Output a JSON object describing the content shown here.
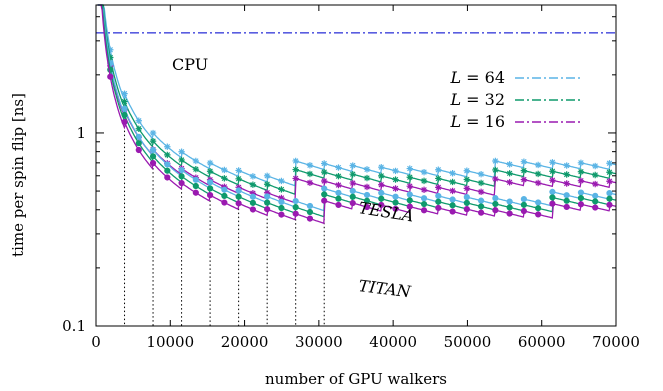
{
  "chart_data": {
    "type": "line",
    "xlabel": "number of GPU walkers",
    "ylabel": "time per spin flip [ns]",
    "xlim": [
      0,
      70000
    ],
    "ylim": [
      0.1,
      4.6
    ],
    "y_scale": "log",
    "x_ticks": [
      "0",
      "10000",
      "20000",
      "30000",
      "40000",
      "50000",
      "60000",
      "70000"
    ],
    "y_ticks": [
      "0.1",
      "1"
    ],
    "legend_position": "top-right",
    "annotations": [
      "CPU",
      "TESLA",
      "TITAN"
    ],
    "colors": {
      "L64": "#5ab4e5",
      "L32": "#0f9a6c",
      "L16": "#9a1ab0",
      "CPU": "#5a5ee0"
    },
    "cpu_level": 3.3,
    "legend": [
      {
        "label_var": "L",
        "label_eq": " = 64",
        "color": "#5ab4e5"
      },
      {
        "label_var": "L",
        "label_eq": " = 32",
        "color": "#0f9a6c"
      },
      {
        "label_var": "L",
        "label_eq": " = 16",
        "color": "#9a1ab0"
      }
    ],
    "thresholds": [
      3840,
      7680,
      11520,
      15360,
      19200,
      23040,
      26880,
      30720
    ],
    "series": [
      {
        "name": "TESLA L=64",
        "color": "#5ab4e5",
        "marker": "star",
        "base": 0.4,
        "k": 4600,
        "jumps": [
          [
            26880,
            0.145
          ],
          [
            53760,
            0.085
          ]
        ]
      },
      {
        "name": "TESLA L=32",
        "color": "#0f9a6c",
        "marker": "star",
        "base": 0.36,
        "k": 4200,
        "jumps": [
          [
            26880,
            0.13
          ],
          [
            53760,
            0.075
          ]
        ]
      },
      {
        "name": "TESLA L=16",
        "color": "#9a1ab0",
        "marker": "star",
        "base": 0.325,
        "k": 3800,
        "jumps": [
          [
            26880,
            0.115
          ],
          [
            53760,
            0.067
          ]
        ]
      },
      {
        "name": "TITAN L=64",
        "color": "#5ab4e5",
        "marker": "circle",
        "base": 0.295,
        "k": 4000,
        "jumps": [
          [
            30720,
            0.09
          ],
          [
            61440,
            0.045
          ]
        ]
      },
      {
        "name": "TITAN L=32",
        "color": "#0f9a6c",
        "marker": "circle",
        "base": 0.275,
        "k": 3700,
        "jumps": [
          [
            30720,
            0.085
          ],
          [
            61440,
            0.043
          ]
        ]
      },
      {
        "name": "TITAN L=16",
        "color": "#9a1ab0",
        "marker": "circle",
        "base": 0.255,
        "k": 3400,
        "jumps": [
          [
            30720,
            0.08
          ],
          [
            61440,
            0.04
          ]
        ]
      }
    ]
  }
}
